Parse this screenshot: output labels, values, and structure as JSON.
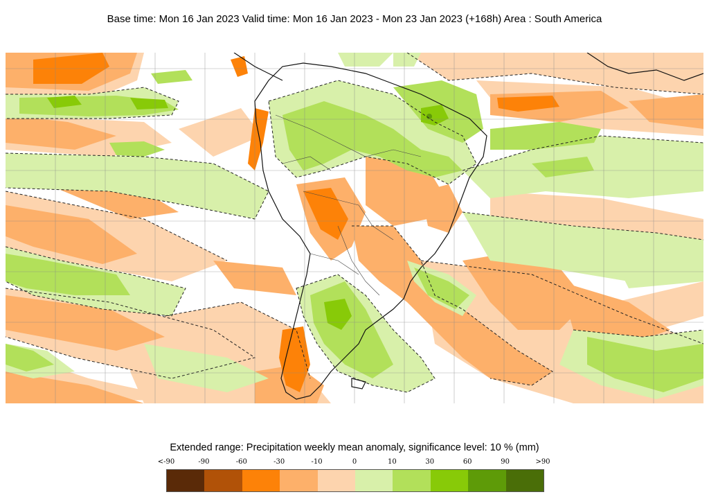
{
  "header": {
    "title": "Base time: Mon 16 Jan 2023 Valid time: Mon 16 Jan 2023 - Mon 23 Jan 2023 (+168h) Area : South America"
  },
  "legend": {
    "title": "Extended range: Precipitation weekly mean anomaly, significance level: 10 % (mm)",
    "ticks": [
      "<-90",
      "-90",
      "-60",
      "-30",
      "-10",
      "0",
      "10",
      "30",
      "60",
      "90",
      ">90"
    ],
    "colors": [
      "#5a2a08",
      "#b15208",
      "#fd8208",
      "#fdb06a",
      "#fdd4ae",
      "#d8f0aa",
      "#b2e05a",
      "#88ca08",
      "#5e9b08",
      "#4a6e08"
    ]
  },
  "map": {
    "area": "South America",
    "contour_style": "dashed-black",
    "grid": true
  }
}
